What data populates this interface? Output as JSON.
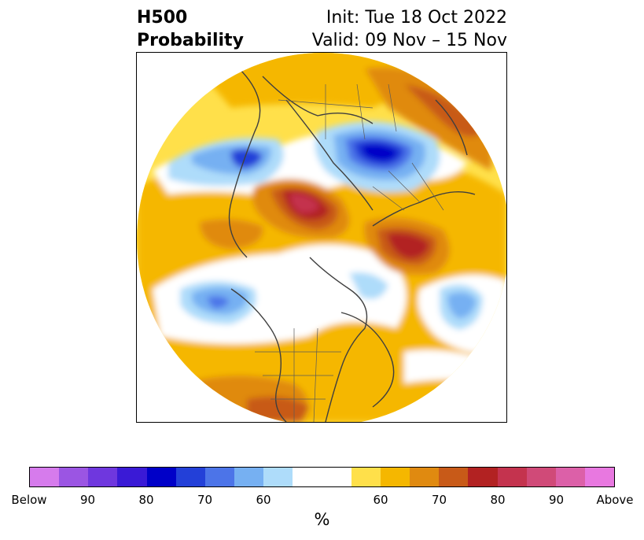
{
  "header": {
    "title_line1": "H500",
    "title_line2": "Probability",
    "init": "Init: Tue 18 Oct 2022",
    "valid": "Valid: 09 Nov – 15 Nov"
  },
  "colorbar": {
    "unit": "%",
    "colors": [
      "#d67bec",
      "#9b55e3",
      "#6f37de",
      "#3a1ad6",
      "#0000c8",
      "#2340d8",
      "#4c74e8",
      "#76b0f2",
      "#aedcfa",
      "#ffffff",
      "#ffffff",
      "#ffe04a",
      "#f5b700",
      "#e08a10",
      "#c85a18",
      "#b22222",
      "#c4334e",
      "#d04a78",
      "#dc60a8",
      "#e878e0"
    ],
    "ticks": [
      {
        "label": "Below",
        "frac": 0.0
      },
      {
        "label": "90",
        "frac": 0.1
      },
      {
        "label": "80",
        "frac": 0.2
      },
      {
        "label": "70",
        "frac": 0.3
      },
      {
        "label": "60",
        "frac": 0.4
      },
      {
        "label": "60",
        "frac": 0.6
      },
      {
        "label": "70",
        "frac": 0.7
      },
      {
        "label": "80",
        "frac": 0.8
      },
      {
        "label": "90",
        "frac": 0.9
      },
      {
        "label": "Above",
        "frac": 1.0
      }
    ]
  }
}
